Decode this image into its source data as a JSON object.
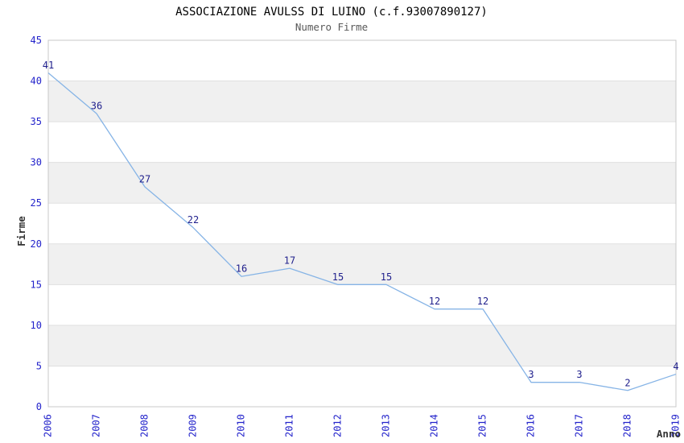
{
  "title": "ASSOCIAZIONE AVULSS DI LUINO (c.f.93007890127)",
  "subtitle": "Numero Firme",
  "chart_data": {
    "type": "line",
    "x": [
      2006,
      2007,
      2008,
      2009,
      2010,
      2011,
      2012,
      2013,
      2014,
      2015,
      2016,
      2017,
      2018,
      2019
    ],
    "values": [
      41,
      36,
      27,
      22,
      16,
      17,
      15,
      15,
      12,
      12,
      3,
      3,
      2,
      4
    ],
    "title": "ASSOCIAZIONE AVULSS DI LUINO (c.f.93007890127)",
    "subtitle": "Numero Firme",
    "xlabel": "Anno",
    "ylabel": "Firme",
    "ylim": [
      0,
      45
    ],
    "ytick_step": 5,
    "grid": "horizontal-bands-alternating",
    "legend": "none",
    "point_labels": true,
    "colors": {
      "line": "#86b4e6",
      "tick_label": "#2323cb",
      "point_label": "#1f1f8c",
      "band": "#f0f0f0",
      "grid_line": "#e0e0e0",
      "border": "#c9c9c9",
      "title": "#000000",
      "subtitle": "#595959",
      "axis_title": "#333333"
    }
  }
}
